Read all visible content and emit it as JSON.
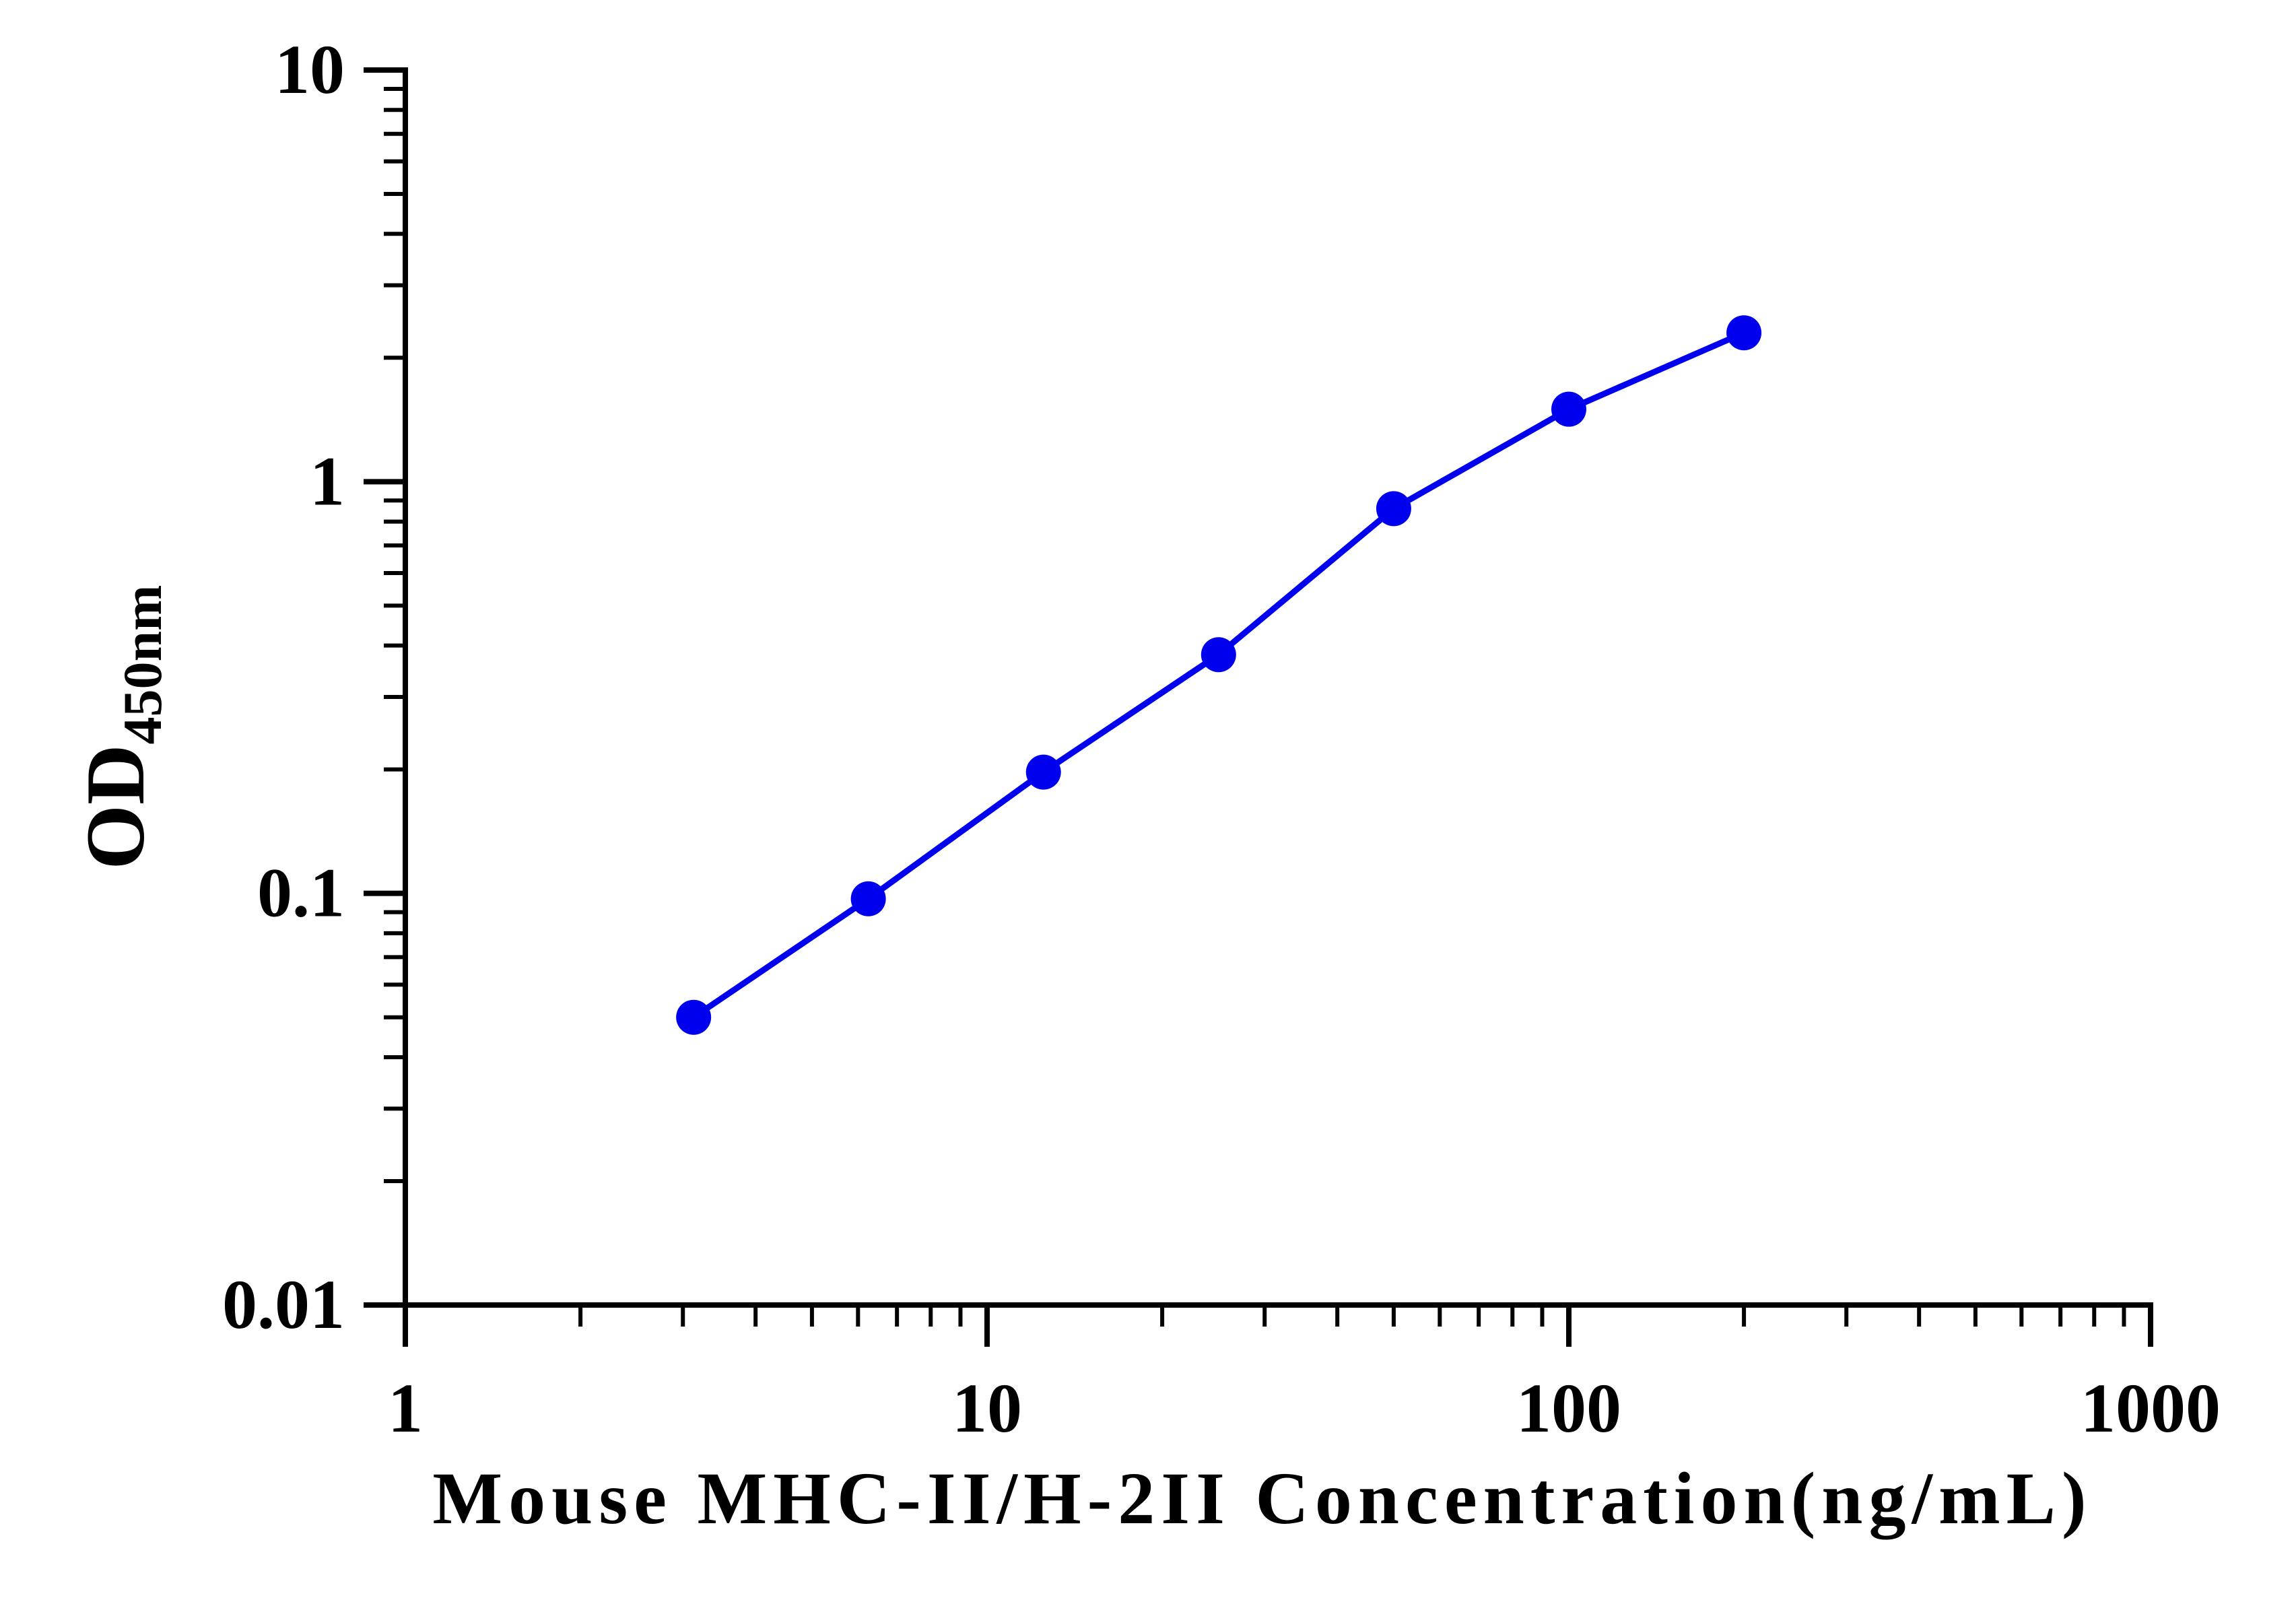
{
  "chart_data": {
    "type": "line",
    "title": "",
    "xlabel": "Mouse MHC-II/H-2II Concentration(ng/mL)",
    "ylabel_main": "OD",
    "ylabel_subscript": "450nm",
    "x_scale": "log",
    "y_scale": "log",
    "xlim": [
      1,
      1000
    ],
    "ylim": [
      0.01,
      10
    ],
    "x_ticks": [
      {
        "value": 1,
        "label": "1"
      },
      {
        "value": 10,
        "label": "10"
      },
      {
        "value": 100,
        "label": "100"
      },
      {
        "value": 1000,
        "label": "1000"
      }
    ],
    "y_ticks": [
      {
        "value": 0.01,
        "label": "0.01"
      },
      {
        "value": 0.1,
        "label": "0.1"
      },
      {
        "value": 1,
        "label": "1"
      },
      {
        "value": 10,
        "label": "10"
      }
    ],
    "grid": false,
    "legend": "none",
    "series": [
      {
        "color": "#0000ee",
        "marker": "circle",
        "x": [
          3.13,
          6.25,
          12.5,
          25,
          50,
          100,
          200
        ],
        "y": [
          0.05,
          0.097,
          0.197,
          0.38,
          0.86,
          1.5,
          2.3
        ]
      }
    ]
  }
}
